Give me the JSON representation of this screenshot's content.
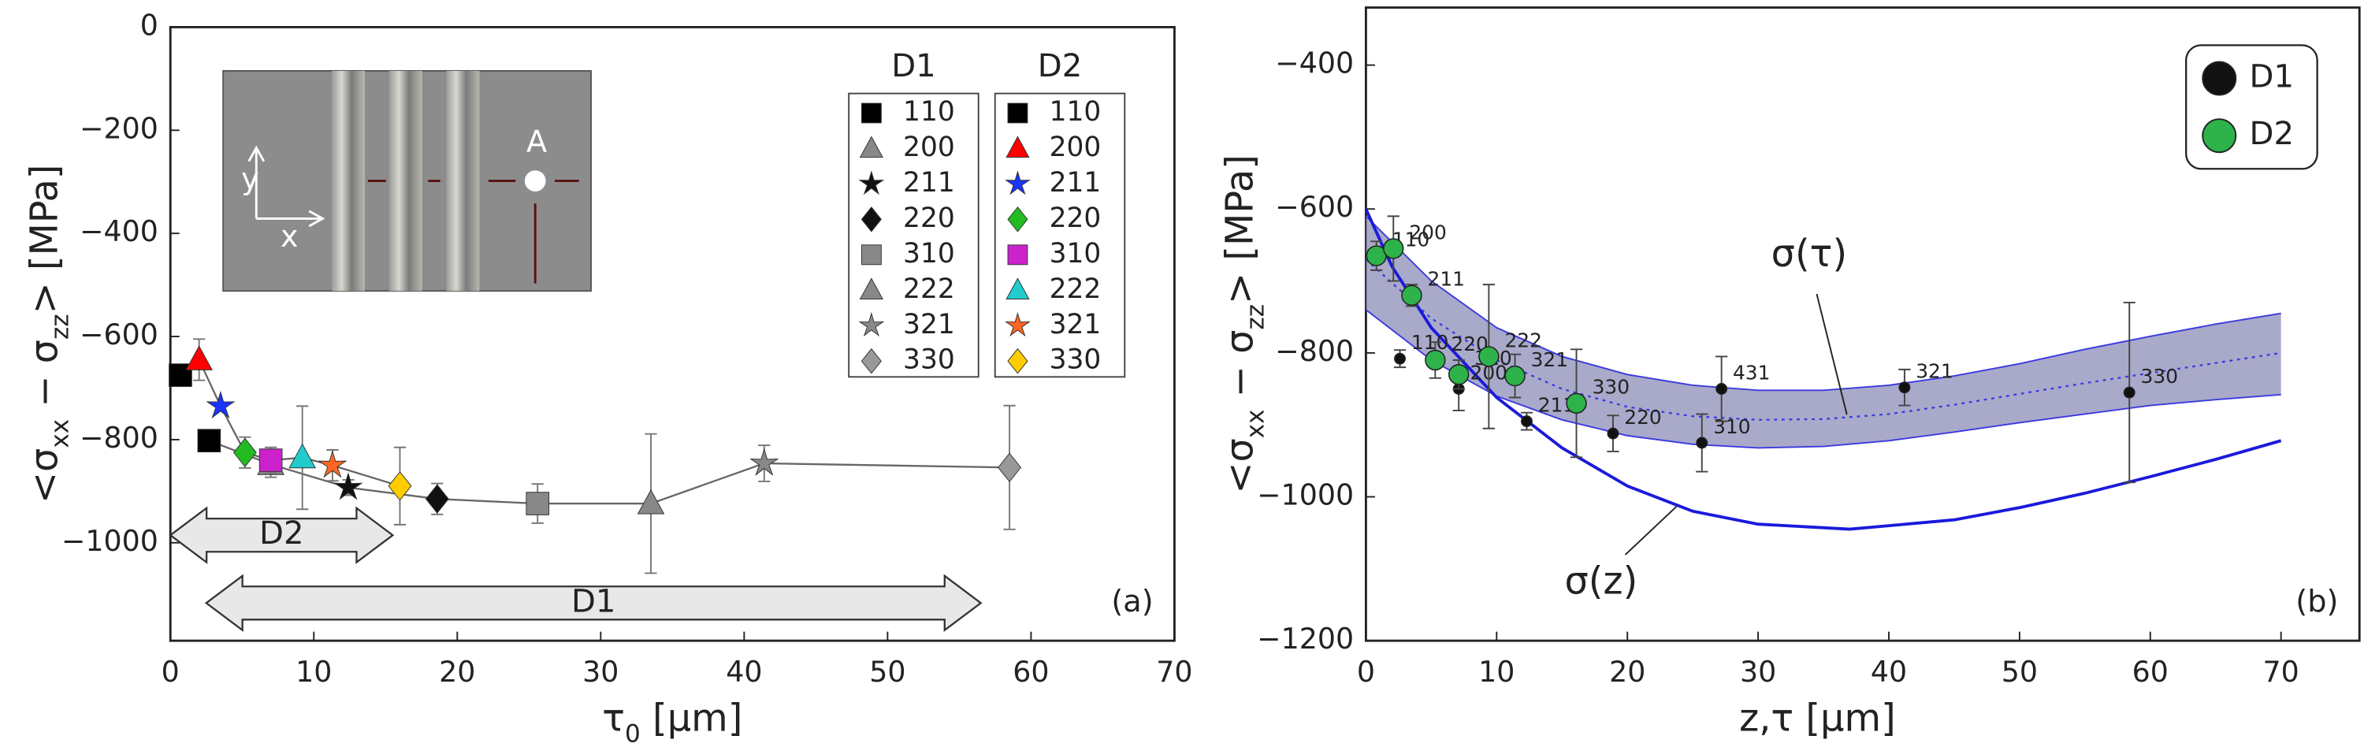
{
  "chart_data": [
    {
      "type": "scatter",
      "panel_label": "(a)",
      "xlabel": [
        "τ",
        "0",
        " [μm]"
      ],
      "ylabel": [
        "<σ",
        "xx",
        " − σ",
        "zz",
        "> [MPa]"
      ],
      "xlim": [
        0,
        70
      ],
      "ylim": [
        -1190,
        0
      ],
      "xticks": [
        0,
        10,
        20,
        30,
        40,
        50,
        60,
        70
      ],
      "yticks": [
        0,
        {
          "value": -200,
          "label": "−200"
        },
        {
          "value": -400,
          "label": "−400"
        },
        {
          "value": -600,
          "label": "−600"
        },
        {
          "value": -800,
          "label": "−800"
        },
        {
          "value": -1000,
          "label": "−1000"
        }
      ],
      "categories": [
        "110",
        "200",
        "211",
        "220",
        "310",
        "222",
        "321",
        "330"
      ],
      "series": [
        {
          "name": "D1",
          "line_color": "#666666",
          "x": [
            2.7,
            7.0,
            12.4,
            18.6,
            25.6,
            33.5,
            41.4,
            58.5
          ],
          "values": [
            -802,
            -848,
            -893,
            -915,
            -924,
            -924,
            -846,
            -854
          ],
          "errors": [
            0,
            25,
            15,
            30,
            38,
            135,
            35,
            120
          ],
          "colors": [
            "#000000",
            "#888888",
            "#111111",
            "#111111",
            "#888888",
            "#888888",
            "#888888",
            "#999999"
          ],
          "markers": [
            "square",
            "triangle",
            "star",
            "diamond",
            "square",
            "triangle",
            "star",
            "diamond"
          ]
        },
        {
          "name": "D2",
          "line_color": "#666666",
          "x": [
            0.7,
            2.0,
            3.5,
            5.2,
            7.0,
            9.2,
            11.3,
            16.0
          ],
          "values": [
            -675,
            -645,
            -735,
            -825,
            -840,
            -835,
            -850,
            -890
          ],
          "errors": [
            15,
            40,
            0,
            30,
            25,
            100,
            30,
            75
          ],
          "colors": [
            "#000000",
            "#ff0000",
            "#1a33ff",
            "#22bb22",
            "#cc22cc",
            "#22cccc",
            "#ff6622",
            "#ffcc00"
          ],
          "markers": [
            "square",
            "triangle",
            "star",
            "diamond",
            "square",
            "triangle",
            "star",
            "diamond"
          ]
        }
      ],
      "spans": [
        {
          "label": "D2",
          "from": 0,
          "to": 15.5
        },
        {
          "label": "D1",
          "from": 2.5,
          "to": 56.5
        }
      ],
      "inset": {
        "labels": [
          "y",
          "x",
          "A"
        ]
      }
    },
    {
      "type": "scatter",
      "panel_label": "(b)",
      "xlabel": "z,τ [μm]",
      "ylabel": [
        "<σ",
        "xx",
        " − σ",
        "zz",
        "> [MPa]"
      ],
      "xlim": [
        0,
        76
      ],
      "ylim": [
        -1200,
        -320
      ],
      "xticks": [
        0,
        10,
        20,
        30,
        40,
        50,
        60,
        70
      ],
      "yticks": [
        {
          "value": -400,
          "label": "−400"
        },
        {
          "value": -600,
          "label": "−600"
        },
        {
          "value": -800,
          "label": "−800"
        },
        {
          "value": -1000,
          "label": "−1000"
        },
        {
          "value": -1200,
          "label": "−1200"
        }
      ],
      "legend": "upper right",
      "series": [
        {
          "name": "D1",
          "color": "#111111",
          "x": [
            2.6,
            7.1,
            12.3,
            18.9,
            25.7,
            27.2,
            41.2,
            58.4
          ],
          "values": [
            -808,
            -850,
            -895,
            -912,
            -925,
            -850,
            -848,
            -855
          ],
          "errors": [
            12,
            30,
            12,
            25,
            40,
            45,
            25,
            125
          ],
          "point_labels": [
            "110",
            "200",
            "211",
            "220",
            "310",
            "431",
            "321",
            "330"
          ]
        },
        {
          "name": "D2",
          "color": "#2db34a",
          "x": [
            0.8,
            2.1,
            3.5,
            5.3,
            7.1,
            9.4,
            11.4,
            16.1
          ],
          "values": [
            -665,
            -655,
            -720,
            -810,
            -830,
            -805,
            -832,
            -870
          ],
          "errors": [
            20,
            45,
            15,
            25,
            20,
            100,
            30,
            75
          ],
          "point_labels": [
            "110",
            "200",
            "211",
            "220",
            "310",
            "222",
            "321",
            "330"
          ]
        }
      ],
      "curves": [
        {
          "name": "σ(z)",
          "color": "#1a1adb",
          "x": [
            0,
            2,
            5,
            10,
            15,
            20,
            25,
            30,
            37,
            45,
            50,
            55,
            60,
            65,
            70
          ],
          "values": [
            -600,
            -680,
            -765,
            -862,
            -932,
            -985,
            -1020,
            -1038,
            -1045,
            -1032,
            -1015,
            -995,
            -972,
            -948,
            -922
          ]
        },
        {
          "name": "σ(τ)",
          "color": "#3a3ae0",
          "band_color": "#8c8cb8",
          "x": [
            0,
            5,
            10,
            15,
            20,
            25,
            30,
            35,
            40,
            45,
            50,
            55,
            60,
            65,
            70
          ],
          "values": [
            -670,
            -752,
            -810,
            -850,
            -875,
            -888,
            -893,
            -892,
            -885,
            -872,
            -857,
            -842,
            -828,
            -814,
            -800
          ],
          "upper": [
            -610,
            -700,
            -765,
            -805,
            -830,
            -845,
            -852,
            -852,
            -845,
            -832,
            -815,
            -795,
            -777,
            -760,
            -745
          ],
          "lower": [
            -740,
            -810,
            -860,
            -893,
            -915,
            -927,
            -932,
            -930,
            -922,
            -910,
            -897,
            -885,
            -873,
            -865,
            -858
          ]
        }
      ]
    }
  ]
}
